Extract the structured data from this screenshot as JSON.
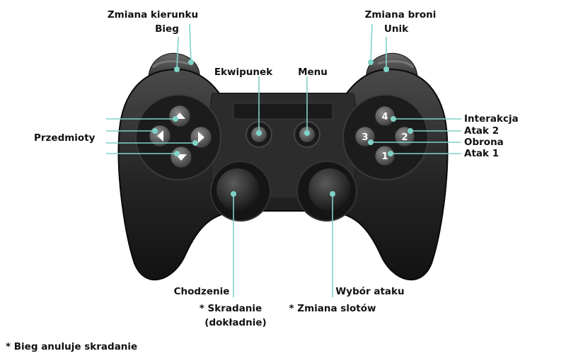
{
  "diagram": {
    "title": "",
    "top_labels": {
      "left_shoulder_top": "Zmiana kierunku",
      "left_shoulder_bottom": "Bieg",
      "right_shoulder_top": "Zmiana broni",
      "right_shoulder_bottom": "Unik",
      "select": "Ekwipunek",
      "start": "Menu"
    },
    "dpad_label": "Przedmioty",
    "face_buttons": [
      {
        "glyph": "4",
        "label": "Interakcja"
      },
      {
        "glyph": "2",
        "label": "Atak 2"
      },
      {
        "glyph": "3",
        "label": "Obrona"
      },
      {
        "glyph": "1",
        "label": "Atak 1"
      }
    ],
    "left_stick": {
      "label": "Chodzenie",
      "note_line1": "* Skradanie",
      "note_line2": "(dokładnie)"
    },
    "right_stick": {
      "label": "Wybór ataku",
      "note": "* Zmiana slotów"
    },
    "footnote": "* Bieg anuluje skradanie",
    "colors": {
      "leader": "#7fd3c8",
      "body_dark": "#1e1e1e",
      "body_mid": "#3a3a3a",
      "text": "#111111"
    }
  }
}
